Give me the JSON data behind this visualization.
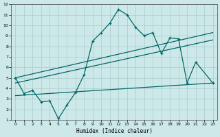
{
  "xlabel": "Humidex (Indice chaleur)",
  "xlim": [
    -0.5,
    23.5
  ],
  "ylim": [
    1,
    12
  ],
  "xticks": [
    0,
    1,
    2,
    3,
    4,
    5,
    6,
    7,
    8,
    9,
    10,
    11,
    12,
    13,
    14,
    15,
    16,
    17,
    18,
    19,
    20,
    21,
    22,
    23
  ],
  "yticks": [
    1,
    2,
    3,
    4,
    5,
    6,
    7,
    8,
    9,
    10,
    11,
    12
  ],
  "background_color": "#cce8e8",
  "grid_color": "#aacccc",
  "line_color": "#006666",
  "upper_curve_x": [
    0,
    1,
    2,
    3,
    4,
    5,
    6,
    7,
    8,
    9,
    10,
    11,
    12,
    13,
    14,
    15,
    16,
    17,
    18,
    19,
    20,
    21,
    23
  ],
  "upper_curve_y": [
    5.0,
    3.5,
    3.8,
    2.7,
    2.8,
    1.1,
    2.4,
    3.6,
    5.3,
    8.5,
    9.3,
    10.2,
    11.5,
    11.0,
    9.8,
    9.0,
    9.3,
    7.3,
    8.8,
    8.7,
    4.5,
    6.5,
    4.5
  ],
  "reg_line1_x": [
    0,
    23
  ],
  "reg_line1_y": [
    5.0,
    9.3
  ],
  "reg_line2_x": [
    0,
    23
  ],
  "reg_line2_y": [
    4.5,
    8.6
  ],
  "bottom_line_x": [
    0,
    23
  ],
  "bottom_line_y": [
    3.3,
    4.5
  ]
}
